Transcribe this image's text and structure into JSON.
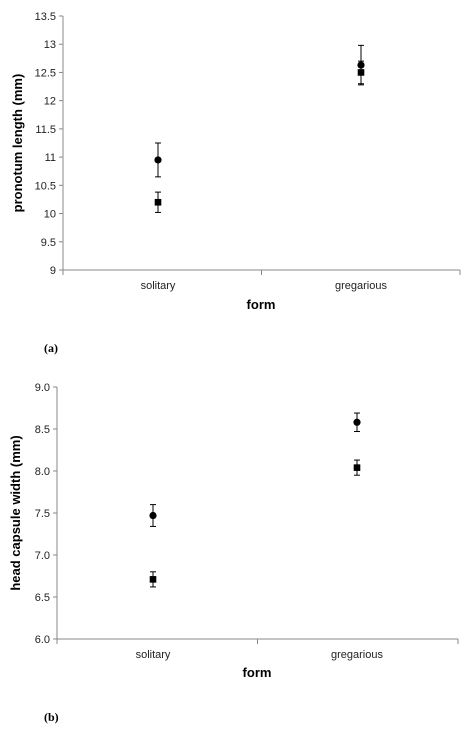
{
  "chart_data": [
    {
      "type": "scatter",
      "panel_label": "(a)",
      "xlabel": "form",
      "ylabel": "pronotum length (mm)",
      "categories": [
        "solitary",
        "gregarious"
      ],
      "ylim": [
        9,
        13.5
      ],
      "yticks": [
        "9",
        "9.5",
        "10",
        "10.5",
        "11",
        "11.5",
        "12",
        "12.5",
        "13",
        "13.5"
      ],
      "grid": false,
      "series": [
        {
          "marker": "circle",
          "values": [
            10.95,
            12.63
          ],
          "errors": [
            0.3,
            0.35
          ]
        },
        {
          "marker": "square",
          "values": [
            10.2,
            12.5
          ],
          "errors": [
            0.18,
            0.2
          ]
        }
      ]
    },
    {
      "type": "scatter",
      "panel_label": "(b)",
      "xlabel": "form",
      "ylabel": "head capsule width (mm)",
      "categories": [
        "solitary",
        "gregarious"
      ],
      "ylim": [
        6.0,
        9.0
      ],
      "yticks": [
        "6.0",
        "6.5",
        "7.0",
        "7.5",
        "8.0",
        "8.5",
        "9.0"
      ],
      "grid": false,
      "series": [
        {
          "marker": "circle",
          "values": [
            7.47,
            8.58
          ],
          "errors": [
            0.13,
            0.11
          ]
        },
        {
          "marker": "square",
          "values": [
            6.71,
            8.04
          ],
          "errors": [
            0.09,
            0.09
          ]
        }
      ]
    }
  ]
}
